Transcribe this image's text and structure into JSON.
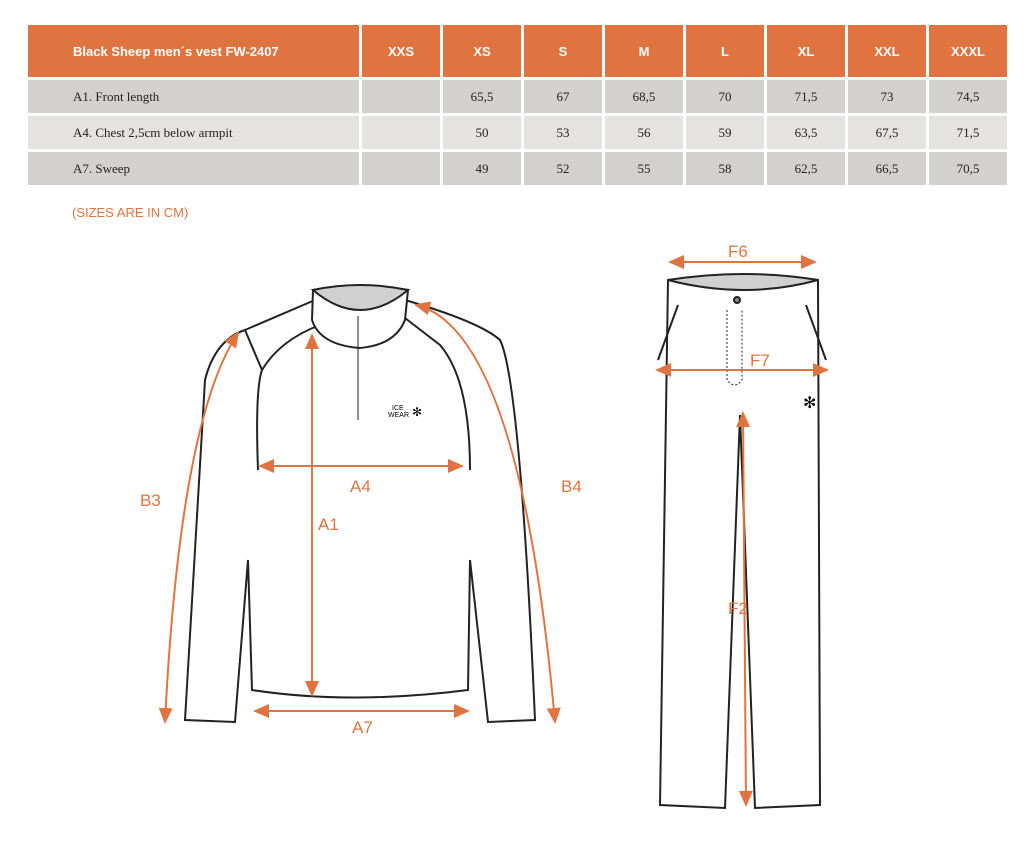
{
  "table": {
    "title": "Black Sheep men´s vest FW-2407",
    "sizes": [
      "XXS",
      "XS",
      "S",
      "M",
      "L",
      "XL",
      "XXL",
      "XXXL"
    ],
    "rows": [
      {
        "label": "A1. Front length",
        "values": [
          "",
          "65,5",
          "67",
          "68,5",
          "70",
          "71,5",
          "73",
          "74,5"
        ]
      },
      {
        "label": "A4. Chest 2,5cm below armpit",
        "values": [
          "",
          "50",
          "53",
          "56",
          "59",
          "63,5",
          "67,5",
          "71,5"
        ]
      },
      {
        "label": "A7. Sweep",
        "values": [
          "",
          "49",
          "52",
          "55",
          "58",
          "62,5",
          "66,5",
          "70,5"
        ]
      }
    ]
  },
  "note": "(SIZES ARE IN CM)",
  "diagram": {
    "jacket_labels": {
      "a1": "A1",
      "a4": "A4",
      "a7": "A7",
      "b3": "B3",
      "b4": "B4"
    },
    "pants_labels": {
      "f6": "F6",
      "f7": "F7",
      "f2": "F2"
    },
    "logo": "ICE WEAR",
    "accent": "#e07440"
  }
}
